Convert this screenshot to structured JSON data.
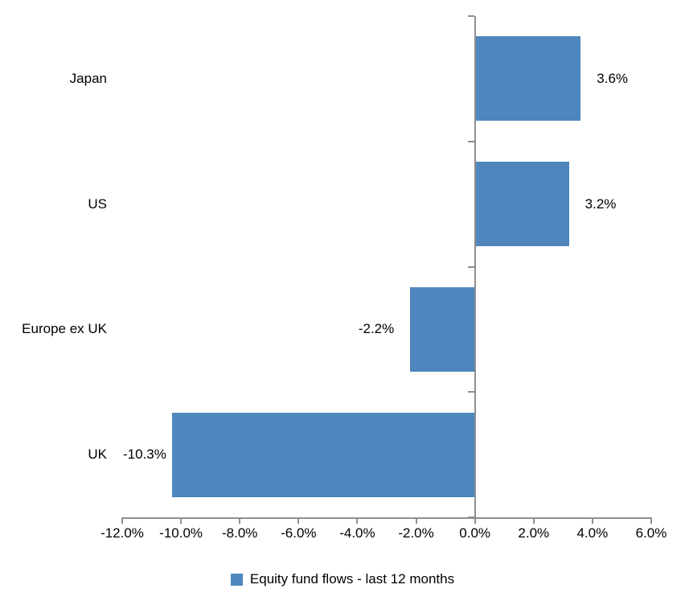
{
  "chart_data": {
    "type": "bar",
    "orientation": "horizontal",
    "title": "",
    "categories": [
      "Japan",
      "US",
      "Europe ex UK",
      "UK"
    ],
    "values": [
      3.6,
      3.2,
      -2.2,
      -10.3
    ],
    "data_labels": [
      "3.6%",
      "3.2%",
      "-2.2%",
      "-10.3%"
    ],
    "x_tick_values": [
      -12,
      -10,
      -8,
      -6,
      -4,
      -2,
      0,
      2,
      4,
      6
    ],
    "x_tick_labels": [
      "-12.0%",
      "-10.0%",
      "-8.0%",
      "-6.0%",
      "-4.0%",
      "-2.0%",
      "0.0%",
      "2.0%",
      "4.0%",
      "6.0%"
    ],
    "xlim": [
      -12,
      6
    ],
    "grid": false,
    "legend_position": "bottom",
    "legend": [
      {
        "label": "Equity fund flows - last 12 months",
        "color": "#4F86BD"
      }
    ],
    "colors": {
      "bar": "#4F86BD",
      "axis": "#8F8F8F",
      "text": "#000000"
    }
  }
}
